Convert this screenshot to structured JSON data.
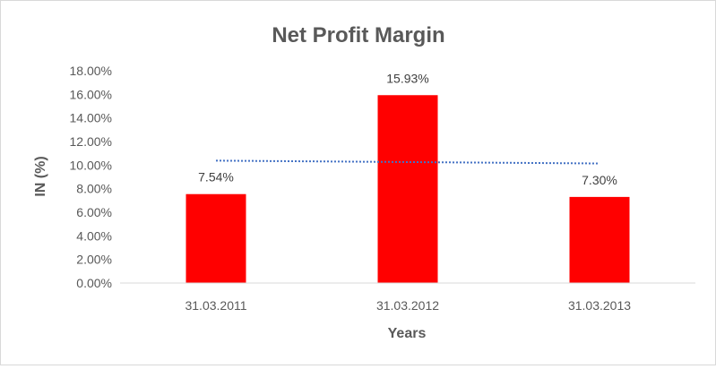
{
  "chart_data": {
    "type": "bar",
    "title": "Net Profit Margin",
    "xlabel": "Years",
    "ylabel": "IN (%)",
    "categories": [
      "31.03.2011",
      "31.03.2012",
      "31.03.2013"
    ],
    "values": [
      7.54,
      15.93,
      7.3
    ],
    "data_labels": [
      "7.54%",
      "15.93%",
      "7.30%"
    ],
    "ylim": [
      0,
      18
    ],
    "yticks": [
      "0.00%",
      "2.00%",
      "4.00%",
      "6.00%",
      "8.00%",
      "10.00%",
      "12.00%",
      "14.00%",
      "16.00%",
      "18.00%"
    ],
    "grid": false,
    "legend": "none",
    "trendline": {
      "type": "linear",
      "style": "dotted",
      "color": "#4472c4"
    },
    "bar_color": "#ff0000"
  }
}
